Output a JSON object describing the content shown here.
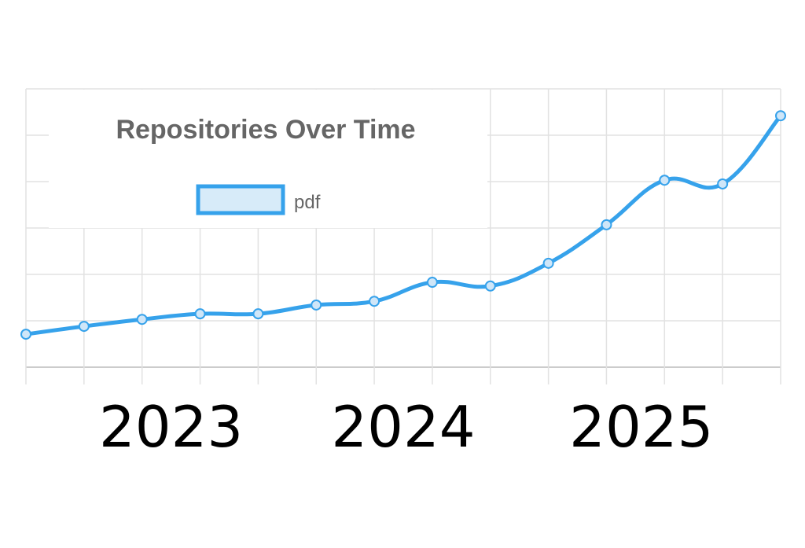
{
  "chart_data": {
    "type": "line",
    "title": "Repositories Over Time",
    "legend": {
      "placement": "top-center",
      "entries": [
        "pdf"
      ]
    },
    "series": [
      {
        "name": "pdf",
        "color": "#36a2eb",
        "fill": "#d7ebf9",
        "x": [
          0,
          1,
          2,
          3,
          4,
          5,
          6,
          7,
          8,
          9,
          10,
          11,
          12,
          13
        ],
        "values": [
          0.71,
          0.88,
          1.03,
          1.15,
          1.15,
          1.34,
          1.42,
          1.83,
          1.75,
          2.24,
          3.07,
          4.03,
          3.95,
          5.42
        ]
      }
    ],
    "xlim": [
      0,
      13
    ],
    "ylim": [
      0,
      6
    ],
    "x_tick_labels": [
      {
        "x": 2.5,
        "label": "2023"
      },
      {
        "x": 6.5,
        "label": "2024"
      },
      {
        "x": 10.6,
        "label": "2025"
      }
    ],
    "y_tick_labels": [],
    "grid": true
  }
}
